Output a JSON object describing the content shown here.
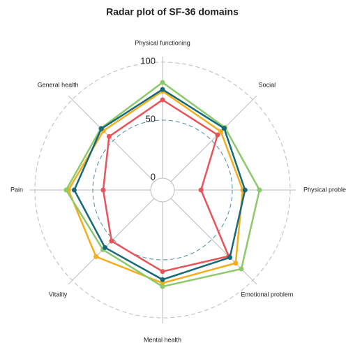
{
  "chart_data": {
    "type": "radar",
    "title": "Radar plot of SF-36 domains",
    "categories": [
      "Physical functioning",
      "Social",
      "Physical problem",
      "Emotional problem",
      "Mental health",
      "Vitality",
      "Pain",
      "General health"
    ],
    "ylim": [
      0,
      100
    ],
    "yticks": [
      0,
      50,
      100
    ],
    "series": [
      {
        "color": "#e8545a",
        "values": [
          67.5,
          57,
          23,
          70.5,
          60,
          52,
          41,
          55
        ]
      },
      {
        "color": "#f5ad1b",
        "values": [
          75,
          61,
          59,
          79,
          70,
          71,
          71,
          62
        ]
      },
      {
        "color": "#8cc96b",
        "values": [
          82.5,
          66,
          73.5,
          86,
          73,
          62.5,
          73,
          65
        ]
      },
      {
        "color": "#17697a",
        "values": [
          76.5,
          65,
          61,
          72,
          67,
          60,
          66,
          64.5
        ]
      }
    ]
  }
}
